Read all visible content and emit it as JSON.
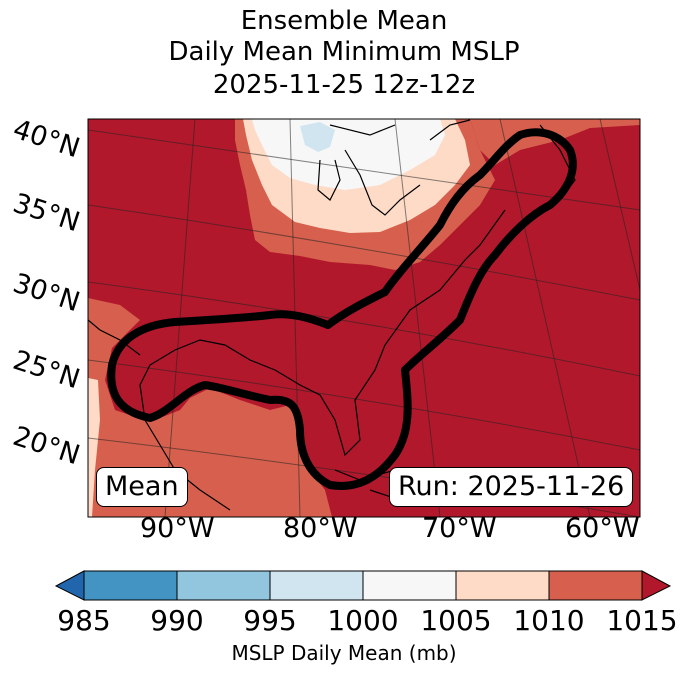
{
  "title": {
    "line1": "Ensemble Mean",
    "line2": "Daily Mean Minimum MSLP",
    "line3": "2025-11-25 12z-12z"
  },
  "lat_labels": [
    "40°N",
    "35°N",
    "30°N",
    "25°N",
    "20°N"
  ],
  "lon_labels": [
    "90°W",
    "80°W",
    "70°W",
    "60°W"
  ],
  "mean_label": "Mean",
  "run_label": "Run: 2025-11-26",
  "colorbar": {
    "ticks": [
      "985",
      "990",
      "995",
      "1000",
      "1005",
      "1010",
      "1015"
    ],
    "label": "MSLP Daily Mean (mb)",
    "colors": [
      "#2166ac",
      "#4393c3",
      "#92c5de",
      "#d1e5f0",
      "#f7f7f7",
      "#fddbc7",
      "#d6604d",
      "#b2182b"
    ]
  },
  "colors": {
    "high": "#b2182b",
    "mid": "#d6604d",
    "light": "#fddbc7",
    "white": "#f7f7f7",
    "blue": "#d1e5f0"
  }
}
